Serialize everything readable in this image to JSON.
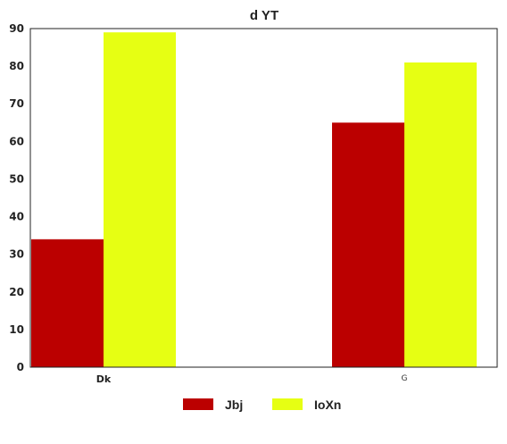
{
  "chart_data": {
    "type": "bar",
    "title": "d YT",
    "xlabel": "",
    "ylabel": "",
    "categories": [
      "Dk",
      "G"
    ],
    "series": [
      {
        "name": "Jbj",
        "values": [
          34,
          65
        ],
        "color": "#bb0000"
      },
      {
        "name": "IoXn",
        "values": [
          89,
          81
        ],
        "color": "#e6ff13"
      }
    ],
    "ylim": [
      0,
      90
    ],
    "yticks": [
      "0",
      "10",
      "20",
      "30",
      "40",
      "50",
      "60",
      "70",
      "80",
      "90"
    ],
    "grid": false,
    "legend_position": "bottom-center"
  }
}
